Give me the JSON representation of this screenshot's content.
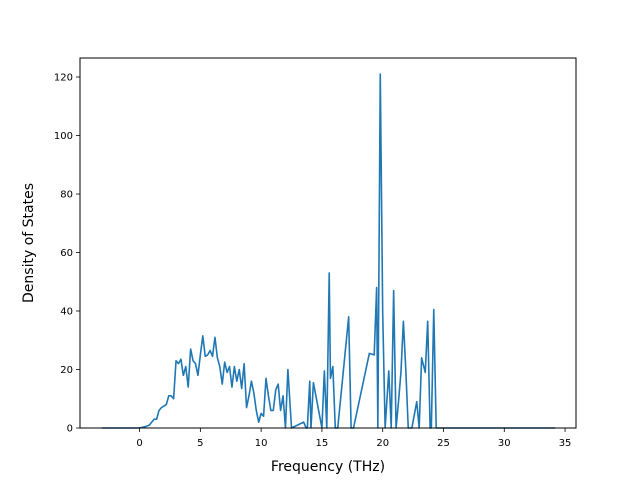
{
  "chart_data": {
    "type": "line",
    "title": "",
    "xlabel": "Frequency (THz)",
    "ylabel": "Density of States",
    "xlim": [
      -4.9,
      35.9
    ],
    "ylim": [
      0,
      126.5
    ],
    "xticks": [
      0,
      5,
      10,
      15,
      20,
      25,
      30,
      35
    ],
    "yticks": [
      0,
      20,
      40,
      60,
      80,
      100,
      120
    ],
    "grid": false,
    "legend": "none",
    "series": [
      {
        "color": "#1f77b4",
        "x": [
          -3.1,
          -2.0,
          -1.0,
          0.0,
          0.5,
          0.8,
          1.0,
          1.2,
          1.4,
          1.6,
          1.8,
          2.0,
          2.2,
          2.4,
          2.6,
          2.8,
          3.0,
          3.2,
          3.4,
          3.6,
          3.8,
          4.0,
          4.2,
          4.4,
          4.6,
          4.8,
          5.0,
          5.2,
          5.4,
          5.6,
          5.8,
          6.0,
          6.2,
          6.4,
          6.6,
          6.8,
          7.0,
          7.2,
          7.4,
          7.6,
          7.8,
          8.0,
          8.2,
          8.4,
          8.6,
          8.8,
          9.0,
          9.2,
          9.4,
          9.6,
          9.8,
          10.0,
          10.2,
          10.4,
          10.6,
          10.8,
          11.0,
          11.2,
          11.4,
          11.6,
          11.8,
          12.0,
          12.2,
          12.5,
          13.5,
          13.7,
          13.8,
          14.0,
          14.1,
          14.3,
          15.0,
          15.2,
          15.4,
          15.6,
          15.7,
          15.9,
          16.1,
          16.3,
          17.2,
          17.4,
          17.6,
          18.9,
          19.3,
          19.5,
          19.6,
          19.8,
          20.0,
          20.2,
          20.5,
          20.7,
          20.9,
          21.1,
          21.3,
          21.5,
          21.7,
          21.9,
          22.1,
          22.4,
          22.8,
          23.0,
          23.2,
          23.5,
          23.7,
          23.9,
          24.0,
          24.2,
          24.4,
          24.6,
          24.8,
          25.0,
          25.2,
          26.0,
          30.0,
          34.2
        ],
        "values": [
          0,
          0,
          0,
          0,
          0.5,
          1,
          2,
          3,
          3,
          6,
          7,
          7.5,
          8,
          11,
          11,
          10,
          23,
          22,
          23.5,
          18,
          21,
          14,
          27,
          23,
          22,
          18,
          25,
          31.5,
          24.5,
          25,
          26.5,
          24.5,
          31,
          24,
          21,
          15,
          22.5,
          19,
          21,
          14,
          21,
          16,
          20,
          13.5,
          22,
          7,
          11,
          16,
          12,
          6,
          2,
          5,
          4,
          17,
          11,
          6,
          6,
          13,
          15,
          6,
          11,
          0,
          20,
          0,
          2,
          0,
          0,
          16,
          0,
          15.5,
          0,
          19.5,
          0,
          53,
          17,
          21,
          0,
          0,
          38,
          0,
          0,
          25.5,
          25,
          48,
          0,
          121,
          39,
          0,
          19.5,
          0,
          47,
          0,
          9,
          19,
          36.5,
          20,
          0,
          0,
          9,
          0,
          24,
          19,
          36.5,
          0,
          0,
          40.5,
          0,
          0,
          0,
          0,
          0,
          0,
          0,
          0
        ]
      }
    ]
  }
}
